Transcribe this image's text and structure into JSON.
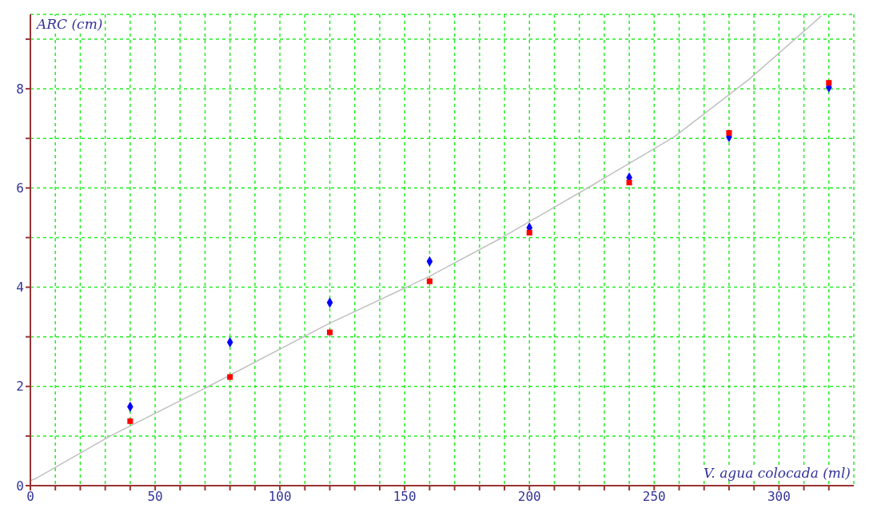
{
  "chart_data": {
    "type": "scatter",
    "xlabel": "V. agua colocada (ml)",
    "ylabel": "ARC (cm)",
    "xlim": [
      0,
      330
    ],
    "ylim": [
      0,
      9.5
    ],
    "xticks": [
      0,
      {
        "value": 10,
        "label": null
      },
      {
        "value": 20,
        "label": null
      },
      {
        "value": 30,
        "label": null
      },
      {
        "value": 40,
        "label": null
      },
      50,
      {
        "value": 60,
        "label": null
      },
      {
        "value": 70,
        "label": null
      },
      {
        "value": 80,
        "label": null
      },
      {
        "value": 90,
        "label": null
      },
      100,
      {
        "value": 110,
        "label": null
      },
      {
        "value": 120,
        "label": null
      },
      {
        "value": 130,
        "label": null
      },
      {
        "value": 140,
        "label": null
      },
      150,
      {
        "value": 160,
        "label": null
      },
      {
        "value": 170,
        "label": null
      },
      {
        "value": 180,
        "label": null
      },
      {
        "value": 190,
        "label": null
      },
      200,
      {
        "value": 210,
        "label": null
      },
      {
        "value": 220,
        "label": null
      },
      {
        "value": 230,
        "label": null
      },
      {
        "value": 240,
        "label": null
      },
      250,
      {
        "value": 260,
        "label": null
      },
      {
        "value": 270,
        "label": null
      },
      {
        "value": 280,
        "label": null
      },
      {
        "value": 290,
        "label": null
      },
      300,
      {
        "value": 310,
        "label": null
      },
      {
        "value": 320,
        "label": null
      }
    ],
    "yticks": [
      0,
      {
        "value": 1,
        "label": null
      },
      2,
      {
        "value": 3,
        "label": null
      },
      4,
      {
        "value": 5,
        "label": null
      },
      6,
      {
        "value": 7,
        "label": null
      },
      8,
      {
        "value": 9,
        "label": null
      }
    ],
    "grid": true,
    "series": [
      {
        "type": "line",
        "color": "#c0c0c0",
        "marker": "none",
        "x": [
          0,
          2.4,
          32,
          70.6,
          119,
          160,
          189,
          225,
          258,
          288,
          317
        ],
        "values": [
          0.1,
          0.15,
          1.0,
          1.98,
          3.25,
          4.22,
          5.0,
          6.05,
          7.03,
          8.19,
          9.47
        ]
      },
      {
        "color": "#0000ff",
        "marker": "diamond",
        "x": [
          40,
          80,
          120,
          160,
          200,
          240,
          280,
          320
        ],
        "values": [
          1.59,
          2.89,
          3.69,
          4.52,
          5.2,
          6.21,
          7.03,
          8.03
        ]
      },
      {
        "color": "#ff0000",
        "marker": "square",
        "x": [
          40,
          80,
          120,
          160,
          200,
          240,
          280,
          320
        ],
        "values": [
          1.3,
          2.19,
          3.09,
          4.12,
          5.1,
          6.11,
          7.11,
          8.12
        ]
      }
    ]
  }
}
